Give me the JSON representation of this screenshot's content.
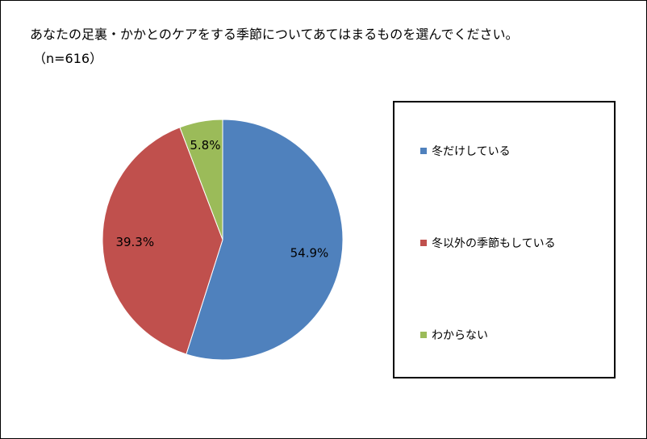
{
  "title": "あなたの足裏・かかとのケアをする季節についてあてはまるものを選んでください。",
  "subtitle": "（n=616）",
  "chart_data": {
    "type": "pie",
    "categories": [
      "冬だけしている",
      "冬以外の季節もしている",
      "わからない"
    ],
    "values": [
      54.9,
      39.3,
      5.8
    ],
    "labels": [
      "54.9%",
      "39.3%",
      "5.8%"
    ],
    "colors": [
      "#4f81bd",
      "#c0504d",
      "#9bbb59"
    ],
    "legend_position": "right",
    "title": "あなたの足裏・かかとのケアをする季節についてあてはまるものを選んでください。",
    "subtitle": "（n=616）"
  }
}
